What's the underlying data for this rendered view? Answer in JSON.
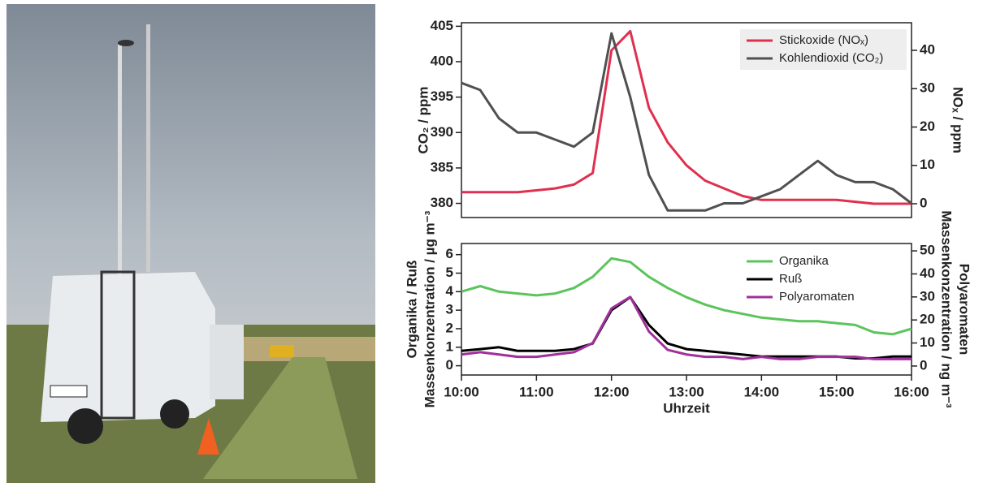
{
  "chart_data": [
    {
      "type": "line",
      "ylabel": "CO₂ / ppm",
      "y2label": "NOₓ / ppm",
      "xlim": [
        10,
        16
      ],
      "ylim": [
        378,
        405.5
      ],
      "yticks": [
        380,
        385,
        390,
        395,
        400,
        405
      ],
      "y2lim": [
        -3.6,
        47.2
      ],
      "y2ticks": [
        0,
        10,
        20,
        30,
        40
      ],
      "legend": "upper right",
      "x": [
        10,
        10.25,
        10.5,
        10.75,
        11,
        11.25,
        11.5,
        11.75,
        12,
        12.25,
        12.5,
        12.75,
        13,
        13.25,
        13.5,
        13.75,
        14,
        14.25,
        14.5,
        14.75,
        15,
        15.25,
        15.5,
        15.75,
        16
      ],
      "series": [
        {
          "name": "Stickoxide (NOₓ)",
          "color": "#e0304f",
          "axis": "y2",
          "values": [
            3,
            3,
            3,
            3,
            3.5,
            4,
            5,
            8,
            40,
            45,
            25,
            16,
            10,
            6,
            4,
            2,
            1,
            1,
            1,
            1,
            1,
            0.5,
            0,
            0,
            0
          ]
        },
        {
          "name": "Kohlendioxid (CO₂)",
          "color": "#505050",
          "values": [
            397,
            396,
            392,
            390,
            390,
            389,
            388,
            390,
            404,
            395,
            384,
            379,
            379,
            379,
            380,
            380,
            381,
            382,
            384,
            386,
            384,
            383,
            383,
            382,
            380
          ]
        }
      ]
    },
    {
      "type": "line",
      "ylabel": [
        "Organika / Ruß",
        "Massenkonzentration / µg m⁻³"
      ],
      "y2label": [
        "Polyaromaten",
        "Massenkonzentration / ng m⁻³"
      ],
      "xlabel": "Uhrzeit",
      "xlim": [
        10,
        16
      ],
      "xticks": [
        {
          "value": 10,
          "label": "10:00"
        },
        {
          "value": 11,
          "label": "11:00"
        },
        {
          "value": 12,
          "label": "12:00"
        },
        {
          "value": 13,
          "label": "13:00"
        },
        {
          "value": 14,
          "label": "14:00"
        },
        {
          "value": 15,
          "label": "15:00"
        },
        {
          "value": 16,
          "label": "16:00"
        }
      ],
      "ylim": [
        -0.5,
        6.6
      ],
      "yticks": [
        0,
        1,
        2,
        3,
        4,
        5,
        6
      ],
      "y2lim": [
        -3.9,
        53.2
      ],
      "y2ticks": [
        0,
        10,
        20,
        30,
        40,
        50
      ],
      "legend": "upper right",
      "x": [
        10,
        10.25,
        10.5,
        10.75,
        11,
        11.25,
        11.5,
        11.75,
        12,
        12.25,
        12.5,
        12.75,
        13,
        13.25,
        13.5,
        13.75,
        14,
        14.25,
        14.5,
        14.75,
        15,
        15.25,
        15.5,
        15.75,
        16
      ],
      "series": [
        {
          "name": "Organika",
          "color": "#5cc45c",
          "values": [
            4,
            4.3,
            4,
            3.9,
            3.8,
            3.9,
            4.2,
            4.8,
            5.8,
            5.6,
            4.8,
            4.2,
            3.7,
            3.3,
            3,
            2.8,
            2.6,
            2.5,
            2.4,
            2.4,
            2.3,
            2.2,
            1.8,
            1.7,
            2
          ]
        },
        {
          "name": "Ruß",
          "color": "#000000",
          "values": [
            0.8,
            0.9,
            1,
            0.8,
            0.8,
            0.8,
            0.9,
            1.2,
            3,
            3.7,
            2.2,
            1.2,
            0.9,
            0.8,
            0.7,
            0.6,
            0.5,
            0.5,
            0.5,
            0.5,
            0.5,
            0.4,
            0.4,
            0.5,
            0.5
          ]
        },
        {
          "name": "Polyaromaten",
          "color": "#a0309a",
          "axis": "y2",
          "values": [
            5,
            6,
            5,
            4,
            4,
            5,
            6,
            10,
            25,
            30,
            15,
            7,
            5,
            4,
            4,
            3,
            4,
            3,
            3,
            4,
            4,
            4,
            3,
            3,
            3
          ]
        }
      ]
    }
  ]
}
